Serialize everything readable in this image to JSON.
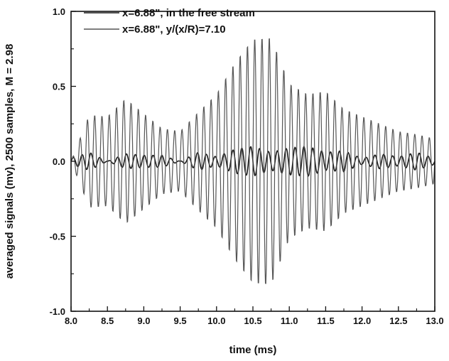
{
  "chart_data": {
    "type": "line",
    "title": "",
    "xlabel": "time (ms)",
    "ylabel": "averaged signals (mv), 2500 samples, M = 2.98",
    "xlim": [
      8.0,
      13.0
    ],
    "ylim": [
      -1.0,
      1.0
    ],
    "x_ticks": [
      "8.0",
      "8.5",
      "9.0",
      "9.5",
      "10.0",
      "10.5",
      "11.0",
      "11.5",
      "12.0",
      "12.5",
      "13.0"
    ],
    "y_ticks": [
      "1.0",
      "0.5",
      "0.0",
      "-0.5",
      "-1.0"
    ],
    "grid": false,
    "legend_position": "top-left",
    "series": [
      {
        "name": "x=6.88\", in the free stream",
        "color": "#1a1a1a",
        "x": [
          8.0,
          8.25,
          8.5,
          8.75,
          9.0,
          9.25,
          9.5,
          9.75,
          10.0,
          10.25,
          10.5,
          10.75,
          11.0,
          11.25,
          11.5,
          11.75,
          12.0,
          12.25,
          12.5,
          12.75,
          13.0
        ],
        "y": [
          0.02,
          0.06,
          0.0,
          0.05,
          -0.04,
          0.04,
          0.0,
          0.06,
          -0.03,
          0.08,
          0.1,
          0.06,
          0.09,
          0.1,
          0.06,
          0.07,
          0.02,
          0.05,
          -0.03,
          0.06,
          0.02
        ]
      },
      {
        "name": "x=6.88\", y/(x/R)=7.10",
        "color": "#555555",
        "x": [
          8.0,
          8.25,
          8.5,
          8.75,
          9.0,
          9.25,
          9.5,
          9.75,
          10.0,
          10.25,
          10.5,
          10.75,
          11.0,
          11.25,
          11.5,
          11.75,
          12.0,
          12.25,
          12.5,
          12.75,
          13.0
        ],
        "y": [
          0.0,
          -0.31,
          0.3,
          0.42,
          -0.32,
          0.22,
          -0.2,
          0.33,
          0.45,
          -0.66,
          0.82,
          -0.83,
          -0.52,
          0.45,
          -0.47,
          0.35,
          -0.3,
          0.25,
          -0.2,
          0.18,
          -0.15
        ]
      }
    ]
  }
}
